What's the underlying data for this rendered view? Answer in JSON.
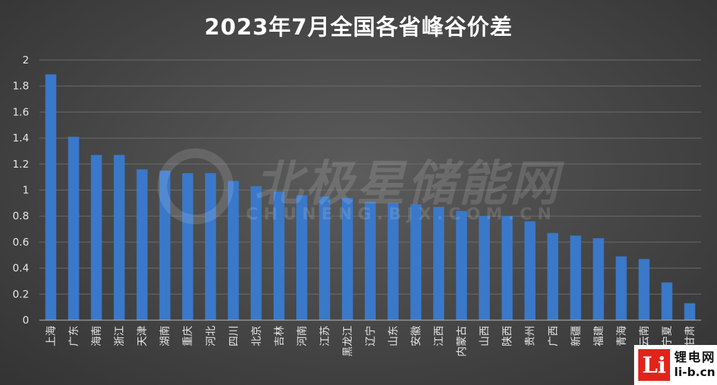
{
  "chart_data": {
    "type": "bar",
    "title": "2023年7月全国各省峰谷价差",
    "xlabel": "",
    "ylabel": "",
    "ylim": [
      0,
      2
    ],
    "yticks": [
      "0",
      "0.2",
      "0.4",
      "0.6",
      "0.8",
      "1",
      "1.2",
      "1.4",
      "1.6",
      "1.8",
      "2"
    ],
    "grid": true,
    "bar_color": "#3a78c9",
    "categories": [
      "上海",
      "广东",
      "海南",
      "浙江",
      "天津",
      "湖南",
      "重庆",
      "河北",
      "四川",
      "北京",
      "吉林",
      "河南",
      "江苏",
      "黑龙江",
      "辽宁",
      "山东",
      "安徽",
      "江西",
      "内蒙古",
      "山西",
      "陕西",
      "贵州",
      "广西",
      "新疆",
      "福建",
      "青海",
      "云南",
      "宁夏",
      "甘肃"
    ],
    "values": [
      1.89,
      1.41,
      1.27,
      1.27,
      1.16,
      1.15,
      1.13,
      1.13,
      1.07,
      1.03,
      0.99,
      0.96,
      0.95,
      0.94,
      0.91,
      0.9,
      0.89,
      0.87,
      0.84,
      0.8,
      0.8,
      0.76,
      0.67,
      0.65,
      0.63,
      0.49,
      0.47,
      0.29,
      0.13
    ]
  },
  "watermark": {
    "text": "北极星储能网",
    "subtext": "CHUNENG.BJX.COM.CN"
  },
  "logo": {
    "mark": "Li",
    "line1": "锂电网",
    "line2": "li-b.cn"
  }
}
